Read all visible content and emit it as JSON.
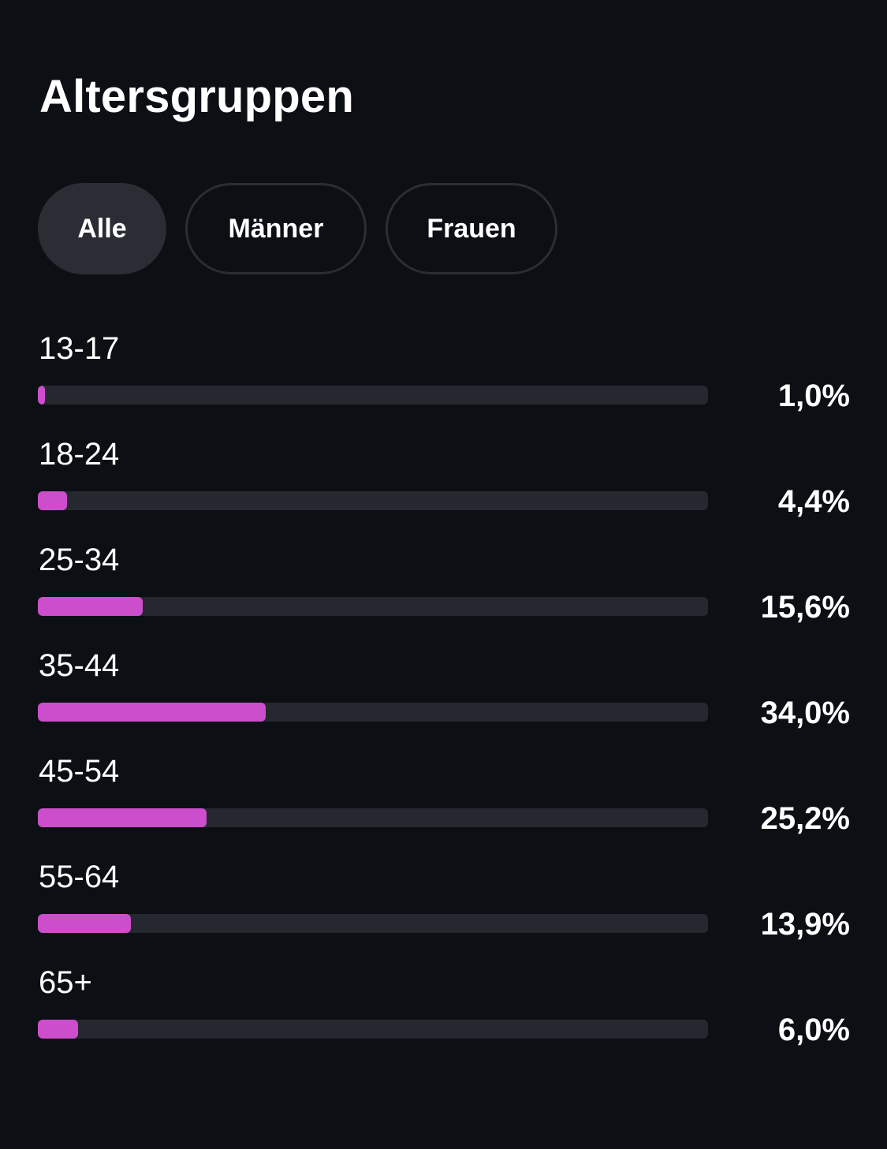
{
  "title": "Altersgruppen",
  "filters": [
    {
      "label": "Alle",
      "active": true
    },
    {
      "label": "Männer",
      "active": false
    },
    {
      "label": "Frauen",
      "active": false
    }
  ],
  "colors": {
    "background": "#0c0f14",
    "bar_fill": "#cc4ecc",
    "bar_track": "#25282e",
    "chip_active": "#2a2d33"
  },
  "age_groups": [
    {
      "label": "13-17",
      "value_text": "1,0%",
      "value": 1.0
    },
    {
      "label": "18-24",
      "value_text": "4,4%",
      "value": 4.4
    },
    {
      "label": "25-34",
      "value_text": "15,6%",
      "value": 15.6
    },
    {
      "label": "35-44",
      "value_text": "34,0%",
      "value": 34.0
    },
    {
      "label": "45-54",
      "value_text": "25,2%",
      "value": 25.2
    },
    {
      "label": "55-64",
      "value_text": "13,9%",
      "value": 13.9
    },
    {
      "label": "65+",
      "value_text": "6,0%",
      "value": 6.0
    }
  ]
}
